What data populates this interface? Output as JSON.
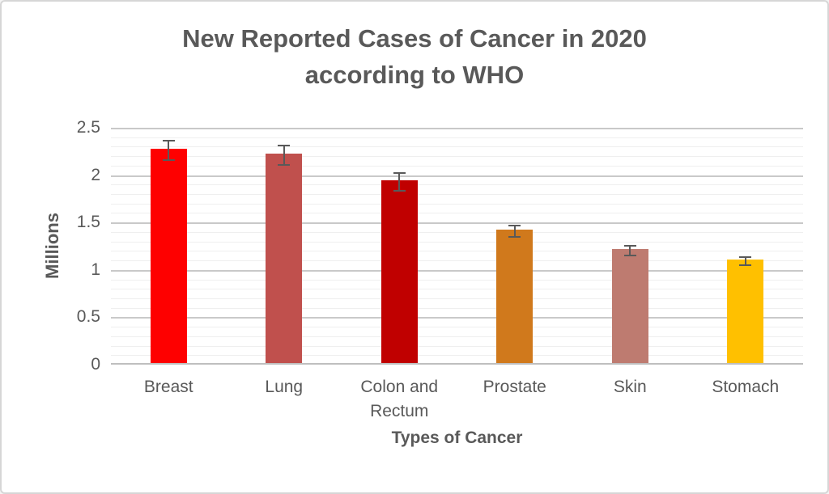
{
  "page": {
    "background": "#ffffff",
    "border_color": "#d6d6d6",
    "text_color": "#595959"
  },
  "chart_data": {
    "type": "bar",
    "title": "New Reported Cases of Cancer in 2020 according to WHO",
    "xlabel": "Types of Cancer",
    "ylabel": "Millions",
    "categories": [
      "Breast",
      "Lung",
      "Colon and Rectum",
      "Prostate",
      "Skin",
      "Stomach"
    ],
    "values": [
      2.26,
      2.21,
      1.93,
      1.41,
      1.2,
      1.09
    ],
    "errors": [
      0.11,
      0.11,
      0.1,
      0.07,
      0.06,
      0.05
    ],
    "bar_colors": [
      "#fe0000",
      "#c0504d",
      "#c00000",
      "#d0791c",
      "#be7b70",
      "#ffc000"
    ],
    "ylim": [
      0,
      2.5
    ],
    "ytick_step": 0.5,
    "yminor_step": 0.1,
    "ytick_labels": [
      "0",
      "0.5",
      "1",
      "1.5",
      "2",
      "2.5"
    ],
    "grid": "on",
    "legend": "none",
    "error_bar_color": "#595959",
    "major_grid_color": "#c9c9c9",
    "minor_grid_color": "#efefef",
    "axis_line_color": "#bfbfbf"
  }
}
